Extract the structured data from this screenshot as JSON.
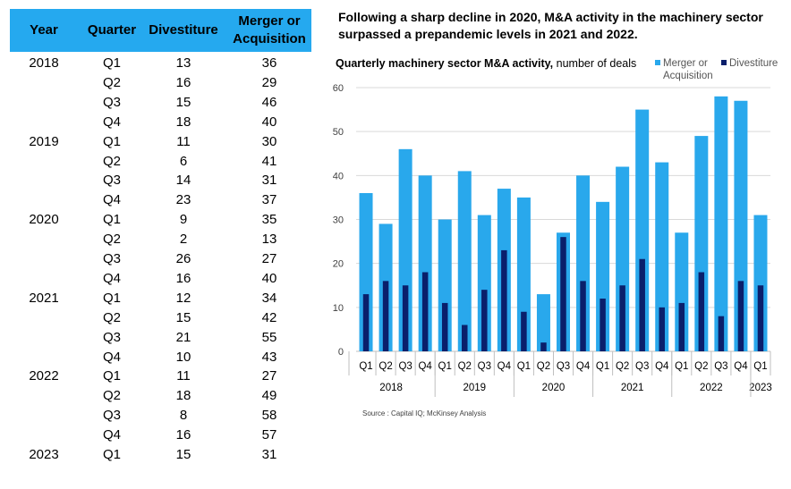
{
  "table": {
    "headers": [
      "Year",
      "Quarter",
      "Divestiture",
      "Merger or Acquisition"
    ],
    "rows": [
      {
        "year": "2018",
        "quarter": "Q1",
        "divestiture": "13",
        "ma": "36"
      },
      {
        "year": "",
        "quarter": "Q2",
        "divestiture": "16",
        "ma": "29"
      },
      {
        "year": "",
        "quarter": "Q3",
        "divestiture": "15",
        "ma": "46"
      },
      {
        "year": "",
        "quarter": "Q4",
        "divestiture": "18",
        "ma": "40"
      },
      {
        "year": "2019",
        "quarter": "Q1",
        "divestiture": "11",
        "ma": "30"
      },
      {
        "year": "",
        "quarter": "Q2",
        "divestiture": "6",
        "ma": "41"
      },
      {
        "year": "",
        "quarter": "Q3",
        "divestiture": "14",
        "ma": "31"
      },
      {
        "year": "",
        "quarter": "Q4",
        "divestiture": "23",
        "ma": "37"
      },
      {
        "year": "2020",
        "quarter": "Q1",
        "divestiture": "9",
        "ma": "35"
      },
      {
        "year": "",
        "quarter": "Q2",
        "divestiture": "2",
        "ma": "13"
      },
      {
        "year": "",
        "quarter": "Q3",
        "divestiture": "26",
        "ma": "27"
      },
      {
        "year": "",
        "quarter": "Q4",
        "divestiture": "16",
        "ma": "40"
      },
      {
        "year": "2021",
        "quarter": "Q1",
        "divestiture": "12",
        "ma": "34"
      },
      {
        "year": "",
        "quarter": "Q2",
        "divestiture": "15",
        "ma": "42"
      },
      {
        "year": "",
        "quarter": "Q3",
        "divestiture": "21",
        "ma": "55"
      },
      {
        "year": "",
        "quarter": "Q4",
        "divestiture": "10",
        "ma": "43"
      },
      {
        "year": "2022",
        "quarter": "Q1",
        "divestiture": "11",
        "ma": "27"
      },
      {
        "year": "",
        "quarter": "Q2",
        "divestiture": "18",
        "ma": "49"
      },
      {
        "year": "",
        "quarter": "Q3",
        "divestiture": "8",
        "ma": "58"
      },
      {
        "year": "",
        "quarter": "Q4",
        "divestiture": "16",
        "ma": "57"
      },
      {
        "year": "2023",
        "quarter": "Q1",
        "divestiture": "15",
        "ma": "31"
      }
    ]
  },
  "headline": "Following a sharp decline in 2020, M&A activity in the machinery sector surpassed a prepandemic levels in 2021 and 2022.",
  "source": "Source : Capital IQ; McKinsey Analysis",
  "chart_data": {
    "type": "bar",
    "title_bold": "Quarterly machinery sector M&A activity,",
    "title_rest": " number of deals",
    "categories": [
      "Q1",
      "Q2",
      "Q3",
      "Q4",
      "Q1",
      "Q2",
      "Q3",
      "Q4",
      "Q1",
      "Q2",
      "Q3",
      "Q4",
      "Q1",
      "Q2",
      "Q3",
      "Q4",
      "Q1",
      "Q2",
      "Q3",
      "Q4",
      "Q1"
    ],
    "year_groups": [
      {
        "label": "2018",
        "start": 0,
        "end": 3
      },
      {
        "label": "2019",
        "start": 4,
        "end": 7
      },
      {
        "label": "2020",
        "start": 8,
        "end": 11
      },
      {
        "label": "2021",
        "start": 12,
        "end": 15
      },
      {
        "label": "2022",
        "start": 16,
        "end": 19
      },
      {
        "label": "2023",
        "start": 20,
        "end": 20
      }
    ],
    "series": [
      {
        "name": "Merger or Acquisition",
        "color": "#29a8ec",
        "values": [
          36,
          29,
          46,
          40,
          30,
          41,
          31,
          37,
          35,
          13,
          27,
          40,
          34,
          42,
          55,
          43,
          27,
          49,
          58,
          57,
          31
        ]
      },
      {
        "name": "Divestiture",
        "color": "#0a1f6b",
        "values": [
          13,
          16,
          15,
          18,
          11,
          6,
          14,
          23,
          9,
          2,
          26,
          16,
          12,
          15,
          21,
          10,
          11,
          18,
          8,
          16,
          15
        ]
      }
    ],
    "legend": [
      {
        "line1": "Merger or",
        "line2": "Acquisition",
        "color": "#29a8ec"
      },
      {
        "line1": "Divestiture",
        "line2": "",
        "color": "#0a1f6b"
      }
    ],
    "yticks": [
      0,
      10,
      20,
      30,
      40,
      50,
      60
    ],
    "ylim": [
      0,
      60
    ],
    "grid": true,
    "legend_position": "top-right"
  }
}
